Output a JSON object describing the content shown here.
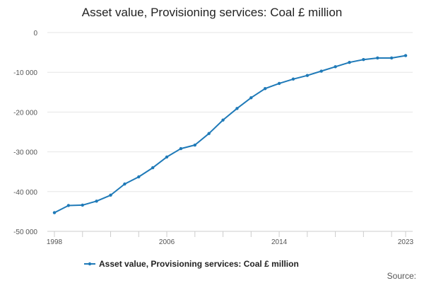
{
  "chart_data": {
    "type": "line",
    "title": "Asset value, Provisioning services: Coal £ million",
    "xlabel": "",
    "ylabel": "",
    "x": [
      1998,
      1999,
      2000,
      2001,
      2002,
      2003,
      2004,
      2005,
      2006,
      2007,
      2008,
      2009,
      2010,
      2011,
      2012,
      2013,
      2014,
      2015,
      2016,
      2017,
      2018,
      2019,
      2020,
      2021,
      2022,
      2023
    ],
    "series": [
      {
        "name": "Asset value, Provisioning services: Coal £ million",
        "values": [
          -45300,
          -43500,
          -43400,
          -42400,
          -40900,
          -38100,
          -36300,
          -34000,
          -31300,
          -29200,
          -28300,
          -25400,
          -22000,
          -19100,
          -16400,
          -14100,
          -12800,
          -11700,
          -10800,
          -9700,
          -8600,
          -7500,
          -6800,
          -6400,
          -6400,
          -5800
        ]
      }
    ],
    "xlim": [
      1998,
      2023
    ],
    "ylim": [
      -50000,
      0
    ],
    "x_tick_labels": [
      "1998",
      "2006",
      "2014",
      "2023"
    ],
    "x_tick_values": [
      1998,
      2006,
      2014,
      2023
    ],
    "y_tick_labels": [
      "0",
      "-10 000",
      "-20 000",
      "-30 000",
      "-40 000",
      "-50 000"
    ],
    "y_tick_values": [
      0,
      -10000,
      -20000,
      -30000,
      -40000,
      -50000
    ],
    "grid": true,
    "legend_position": "bottom",
    "source_label": "Source:",
    "colors": {
      "series": "#1f7ab8",
      "grid": "#e6e6e6",
      "axis": "#cccccc"
    }
  }
}
